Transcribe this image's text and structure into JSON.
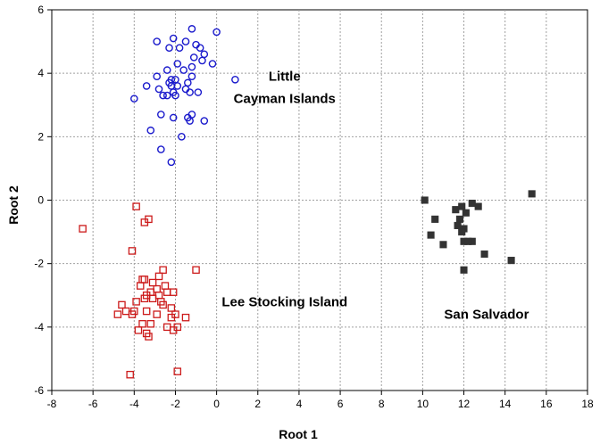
{
  "chart_data": {
    "type": "scatter",
    "xlabel": "Root 1",
    "ylabel": "Root 2",
    "xlim": [
      -8,
      18
    ],
    "ylim": [
      -6,
      6
    ],
    "xticks": [
      -8,
      -6,
      -4,
      -2,
      0,
      2,
      4,
      6,
      8,
      10,
      12,
      14,
      16,
      18
    ],
    "yticks": [
      -6,
      -4,
      -2,
      0,
      2,
      4,
      6
    ],
    "grid": "dashed",
    "annotations": [
      {
        "text": "Little",
        "x": 3.3,
        "y": 3.9
      },
      {
        "text": "Cayman Islands",
        "x": 3.3,
        "y": 3.2
      },
      {
        "text": "Lee Stocking Island",
        "x": 3.3,
        "y": -3.2
      },
      {
        "text": "San Salvador",
        "x": 13.1,
        "y": -3.6
      }
    ],
    "series": [
      {
        "marker": "circle",
        "color": "#1a1acc",
        "points": [
          [
            -1.2,
            5.4
          ],
          [
            -2.1,
            5.1
          ],
          [
            -1.5,
            5.0
          ],
          [
            -2.9,
            5.0
          ],
          [
            -1.0,
            4.9
          ],
          [
            0.0,
            5.3
          ],
          [
            -1.8,
            4.8
          ],
          [
            -2.3,
            4.8
          ],
          [
            -0.8,
            4.8
          ],
          [
            -0.6,
            4.6
          ],
          [
            -1.1,
            4.5
          ],
          [
            -0.7,
            4.4
          ],
          [
            -1.9,
            4.3
          ],
          [
            -1.2,
            4.2
          ],
          [
            -0.2,
            4.3
          ],
          [
            -2.4,
            4.1
          ],
          [
            -1.6,
            4.1
          ],
          [
            -2.9,
            3.9
          ],
          [
            -1.2,
            3.9
          ],
          [
            -2.0,
            3.8
          ],
          [
            -2.2,
            3.8
          ],
          [
            -2.3,
            3.7
          ],
          [
            -1.4,
            3.7
          ],
          [
            -1.9,
            3.6
          ],
          [
            -2.2,
            3.6
          ],
          [
            -3.4,
            3.6
          ],
          [
            -2.8,
            3.5
          ],
          [
            -1.5,
            3.5
          ],
          [
            -1.3,
            3.4
          ],
          [
            -2.1,
            3.4
          ],
          [
            -2.4,
            3.3
          ],
          [
            -2.0,
            3.3
          ],
          [
            -2.6,
            3.3
          ],
          [
            -0.9,
            3.4
          ],
          [
            -4.0,
            3.2
          ],
          [
            0.9,
            3.8
          ],
          [
            -1.2,
            2.7
          ],
          [
            -1.4,
            2.6
          ],
          [
            -1.3,
            2.5
          ],
          [
            -2.7,
            2.7
          ],
          [
            -2.1,
            2.6
          ],
          [
            -0.6,
            2.5
          ],
          [
            -3.2,
            2.2
          ],
          [
            -1.7,
            2.0
          ],
          [
            -2.7,
            1.6
          ],
          [
            -2.2,
            1.2
          ]
        ]
      },
      {
        "marker": "square",
        "color": "#cc1a1a",
        "points": [
          [
            -6.5,
            -0.9
          ],
          [
            -3.9,
            -0.2
          ],
          [
            -3.3,
            -0.6
          ],
          [
            -3.5,
            -0.7
          ],
          [
            -4.1,
            -1.6
          ],
          [
            -2.6,
            -2.2
          ],
          [
            -2.8,
            -2.4
          ],
          [
            -1.0,
            -2.2
          ],
          [
            -3.6,
            -2.5
          ],
          [
            -3.5,
            -2.5
          ],
          [
            -3.7,
            -2.7
          ],
          [
            -3.1,
            -2.6
          ],
          [
            -2.9,
            -2.8
          ],
          [
            -2.5,
            -2.7
          ],
          [
            -3.2,
            -2.9
          ],
          [
            -3.4,
            -3.0
          ],
          [
            -2.8,
            -3.0
          ],
          [
            -2.4,
            -2.9
          ],
          [
            -2.1,
            -2.9
          ],
          [
            -3.5,
            -3.1
          ],
          [
            -3.1,
            -3.1
          ],
          [
            -2.7,
            -3.2
          ],
          [
            -3.9,
            -3.2
          ],
          [
            -4.6,
            -3.3
          ],
          [
            -2.2,
            -3.4
          ],
          [
            -3.4,
            -3.5
          ],
          [
            -4.4,
            -3.5
          ],
          [
            -4.1,
            -3.6
          ],
          [
            -4.0,
            -3.5
          ],
          [
            -2.0,
            -3.6
          ],
          [
            -2.9,
            -3.6
          ],
          [
            -2.2,
            -3.7
          ],
          [
            -1.5,
            -3.7
          ],
          [
            -4.8,
            -3.6
          ],
          [
            -3.6,
            -3.9
          ],
          [
            -3.2,
            -3.9
          ],
          [
            -2.4,
            -4.0
          ],
          [
            -2.1,
            -4.1
          ],
          [
            -3.8,
            -4.1
          ],
          [
            -3.4,
            -4.2
          ],
          [
            -3.3,
            -4.3
          ],
          [
            -1.9,
            -4.0
          ],
          [
            -4.2,
            -5.5
          ],
          [
            -1.9,
            -5.4
          ],
          [
            -2.6,
            -3.3
          ]
        ]
      },
      {
        "marker": "filled-square",
        "color": "#333333",
        "points": [
          [
            10.1,
            0.0
          ],
          [
            15.3,
            0.2
          ],
          [
            12.7,
            -0.2
          ],
          [
            12.4,
            -0.1
          ],
          [
            11.9,
            -0.2
          ],
          [
            10.6,
            -0.6
          ],
          [
            11.6,
            -0.3
          ],
          [
            12.1,
            -0.4
          ],
          [
            11.8,
            -0.6
          ],
          [
            11.7,
            -0.8
          ],
          [
            12.0,
            -0.9
          ],
          [
            10.4,
            -1.1
          ],
          [
            12.0,
            -1.3
          ],
          [
            12.4,
            -1.3
          ],
          [
            12.2,
            -1.3
          ],
          [
            11.0,
            -1.4
          ],
          [
            13.0,
            -1.7
          ],
          [
            14.3,
            -1.9
          ],
          [
            12.0,
            -2.2
          ],
          [
            11.9,
            -1.0
          ]
        ]
      }
    ]
  }
}
